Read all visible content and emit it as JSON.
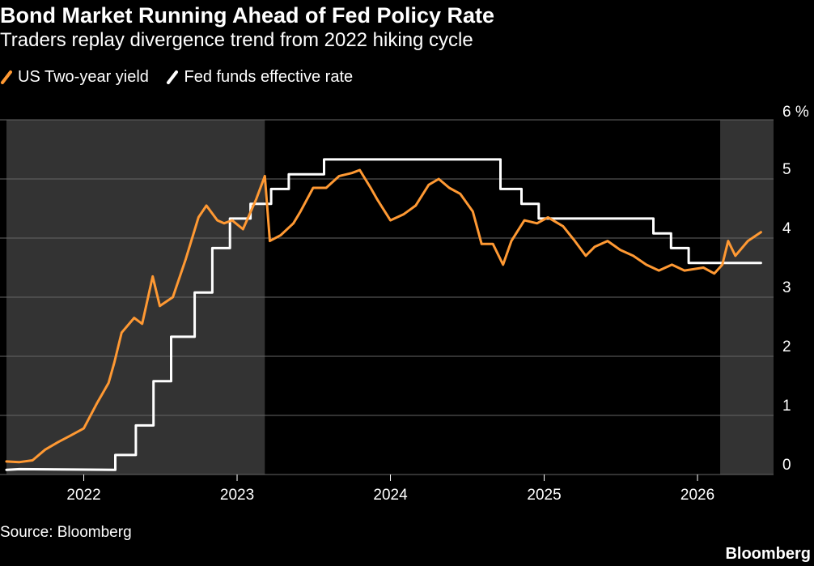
{
  "title": "Bond Market Running Ahead of Fed Policy Rate",
  "subtitle": "Traders replay divergence trend from 2022 hiking cycle",
  "source": "Source: Bloomberg",
  "logo": "Bloomberg",
  "colors": {
    "background": "#000000",
    "shade": "#333333",
    "grid": "#666666",
    "two_year": "#ff9933",
    "fed": "#ffffff"
  },
  "chart_data": {
    "type": "line",
    "ylim": [
      0,
      6
    ],
    "unit": "%",
    "y_ticks": [
      0,
      1,
      2,
      3,
      4,
      5,
      6
    ],
    "y_tick_labels": [
      "0",
      "1",
      "2",
      "3",
      "4",
      "5",
      "6 %"
    ],
    "x_range": [
      "2021-07-01",
      "2026-07-01"
    ],
    "x_ticks": [
      "2022-01-01",
      "2023-01-01",
      "2024-01-01",
      "2025-01-01",
      "2026-01-01"
    ],
    "x_tick_labels": [
      "2022",
      "2023",
      "2024",
      "2025",
      "2026"
    ],
    "grid": true,
    "legend_position": "top-left",
    "shaded_periods": [
      [
        "2021-07-01",
        "2023-03-08"
      ],
      [
        "2026-02-24",
        "2026-07-01"
      ]
    ],
    "series": [
      {
        "name": "US Two-year yield",
        "color": "#ff9933",
        "points": [
          [
            "2021-07-01",
            0.22
          ],
          [
            "2021-08-01",
            0.21
          ],
          [
            "2021-09-01",
            0.24
          ],
          [
            "2021-10-01",
            0.42
          ],
          [
            "2021-11-01",
            0.55
          ],
          [
            "2021-12-01",
            0.66
          ],
          [
            "2022-01-01",
            0.78
          ],
          [
            "2022-02-01",
            1.2
          ],
          [
            "2022-03-01",
            1.55
          ],
          [
            "2022-03-15",
            1.9
          ],
          [
            "2022-04-01",
            2.4
          ],
          [
            "2022-05-01",
            2.65
          ],
          [
            "2022-05-20",
            2.55
          ],
          [
            "2022-06-14",
            3.35
          ],
          [
            "2022-07-01",
            2.85
          ],
          [
            "2022-08-01",
            3.0
          ],
          [
            "2022-09-01",
            3.65
          ],
          [
            "2022-10-01",
            4.35
          ],
          [
            "2022-10-20",
            4.55
          ],
          [
            "2022-11-15",
            4.3
          ],
          [
            "2022-12-01",
            4.25
          ],
          [
            "2022-12-20",
            4.3
          ],
          [
            "2023-01-15",
            4.15
          ],
          [
            "2023-02-15",
            4.65
          ],
          [
            "2023-03-08",
            5.05
          ],
          [
            "2023-03-20",
            3.95
          ],
          [
            "2023-04-15",
            4.05
          ],
          [
            "2023-05-15",
            4.25
          ],
          [
            "2023-06-01",
            4.45
          ],
          [
            "2023-07-01",
            4.85
          ],
          [
            "2023-08-01",
            4.85
          ],
          [
            "2023-09-01",
            5.05
          ],
          [
            "2023-10-01",
            5.1
          ],
          [
            "2023-10-20",
            5.15
          ],
          [
            "2023-11-15",
            4.85
          ],
          [
            "2023-12-01",
            4.65
          ],
          [
            "2024-01-01",
            4.3
          ],
          [
            "2024-02-01",
            4.4
          ],
          [
            "2024-03-01",
            4.55
          ],
          [
            "2024-04-01",
            4.9
          ],
          [
            "2024-04-25",
            5.0
          ],
          [
            "2024-05-20",
            4.85
          ],
          [
            "2024-06-15",
            4.75
          ],
          [
            "2024-07-15",
            4.45
          ],
          [
            "2024-08-05",
            3.9
          ],
          [
            "2024-09-01",
            3.9
          ],
          [
            "2024-09-25",
            3.55
          ],
          [
            "2024-10-15",
            3.95
          ],
          [
            "2024-11-15",
            4.3
          ],
          [
            "2024-12-15",
            4.25
          ],
          [
            "2025-01-10",
            4.35
          ],
          [
            "2025-02-15",
            4.2
          ],
          [
            "2025-03-15",
            3.95
          ],
          [
            "2025-04-10",
            3.7
          ],
          [
            "2025-05-01",
            3.85
          ],
          [
            "2025-06-01",
            3.95
          ],
          [
            "2025-07-01",
            3.8
          ],
          [
            "2025-08-01",
            3.7
          ],
          [
            "2025-09-01",
            3.55
          ],
          [
            "2025-10-01",
            3.45
          ],
          [
            "2025-11-01",
            3.55
          ],
          [
            "2025-12-01",
            3.45
          ],
          [
            "2026-01-15",
            3.5
          ],
          [
            "2026-02-10",
            3.4
          ],
          [
            "2026-03-01",
            3.55
          ],
          [
            "2026-03-15",
            3.95
          ],
          [
            "2026-04-01",
            3.7
          ],
          [
            "2026-05-01",
            3.95
          ],
          [
            "2026-06-01",
            4.1
          ]
        ]
      },
      {
        "name": "Fed funds effective rate",
        "color": "#ffffff",
        "points": [
          [
            "2021-07-01",
            0.08
          ],
          [
            "2021-08-01",
            0.09
          ],
          [
            "2022-03-17",
            0.08
          ],
          [
            "2022-03-17",
            0.33
          ],
          [
            "2022-05-05",
            0.33
          ],
          [
            "2022-05-05",
            0.83
          ],
          [
            "2022-06-16",
            0.83
          ],
          [
            "2022-06-16",
            1.58
          ],
          [
            "2022-07-28",
            1.58
          ],
          [
            "2022-07-28",
            2.33
          ],
          [
            "2022-09-22",
            2.33
          ],
          [
            "2022-09-22",
            3.08
          ],
          [
            "2022-11-03",
            3.08
          ],
          [
            "2022-11-03",
            3.83
          ],
          [
            "2022-12-15",
            3.83
          ],
          [
            "2022-12-15",
            4.33
          ],
          [
            "2023-02-02",
            4.33
          ],
          [
            "2023-02-02",
            4.58
          ],
          [
            "2023-03-23",
            4.58
          ],
          [
            "2023-03-23",
            4.83
          ],
          [
            "2023-05-04",
            4.83
          ],
          [
            "2023-05-04",
            5.08
          ],
          [
            "2023-07-27",
            5.08
          ],
          [
            "2023-07-27",
            5.33
          ],
          [
            "2024-09-19",
            5.33
          ],
          [
            "2024-09-19",
            4.83
          ],
          [
            "2024-11-08",
            4.83
          ],
          [
            "2024-11-08",
            4.58
          ],
          [
            "2024-12-19",
            4.58
          ],
          [
            "2024-12-19",
            4.33
          ],
          [
            "2025-09-18",
            4.33
          ],
          [
            "2025-09-18",
            4.08
          ],
          [
            "2025-10-30",
            4.08
          ],
          [
            "2025-10-30",
            3.83
          ],
          [
            "2025-12-11",
            3.83
          ],
          [
            "2025-12-11",
            3.58
          ],
          [
            "2026-06-01",
            3.58
          ]
        ]
      }
    ]
  }
}
